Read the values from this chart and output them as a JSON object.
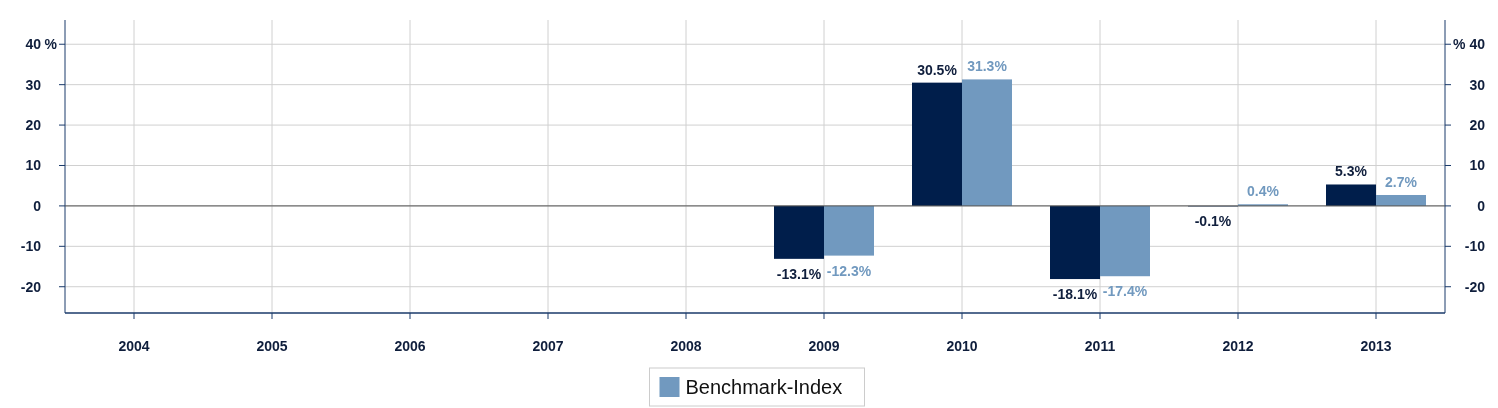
{
  "chart_data": {
    "type": "bar",
    "categories": [
      "2004",
      "2005",
      "2006",
      "2007",
      "2008",
      "2009",
      "2010",
      "2011",
      "2012",
      "2013"
    ],
    "series": [
      {
        "color": "#001e4b",
        "values": [
          null,
          null,
          null,
          null,
          null,
          -13.1,
          30.5,
          -18.1,
          -0.1,
          5.3
        ],
        "value_labels": [
          null,
          null,
          null,
          null,
          null,
          "-13.1%",
          "30.5%",
          "-18.1%",
          "-0.1%",
          "5.3%"
        ]
      },
      {
        "name": "Benchmark-Index",
        "color": "#7199bf",
        "values": [
          null,
          null,
          null,
          null,
          null,
          -12.3,
          31.3,
          -17.4,
          0.4,
          2.7
        ],
        "value_labels": [
          null,
          null,
          null,
          null,
          null,
          "-12.3%",
          "31.3%",
          "-17.4%",
          "0.4%",
          "2.7%"
        ]
      }
    ],
    "ylabel": "%",
    "y2label": "%",
    "ylim": [
      -26.5,
      46
    ],
    "yticks": [
      -20,
      -10,
      0,
      10,
      20,
      40,
      30
    ],
    "y2lim": [
      -26.5,
      46
    ],
    "y2ticks": [
      -20,
      -10,
      0,
      10,
      20,
      30,
      40
    ],
    "grid": true,
    "legend": "bottom"
  }
}
